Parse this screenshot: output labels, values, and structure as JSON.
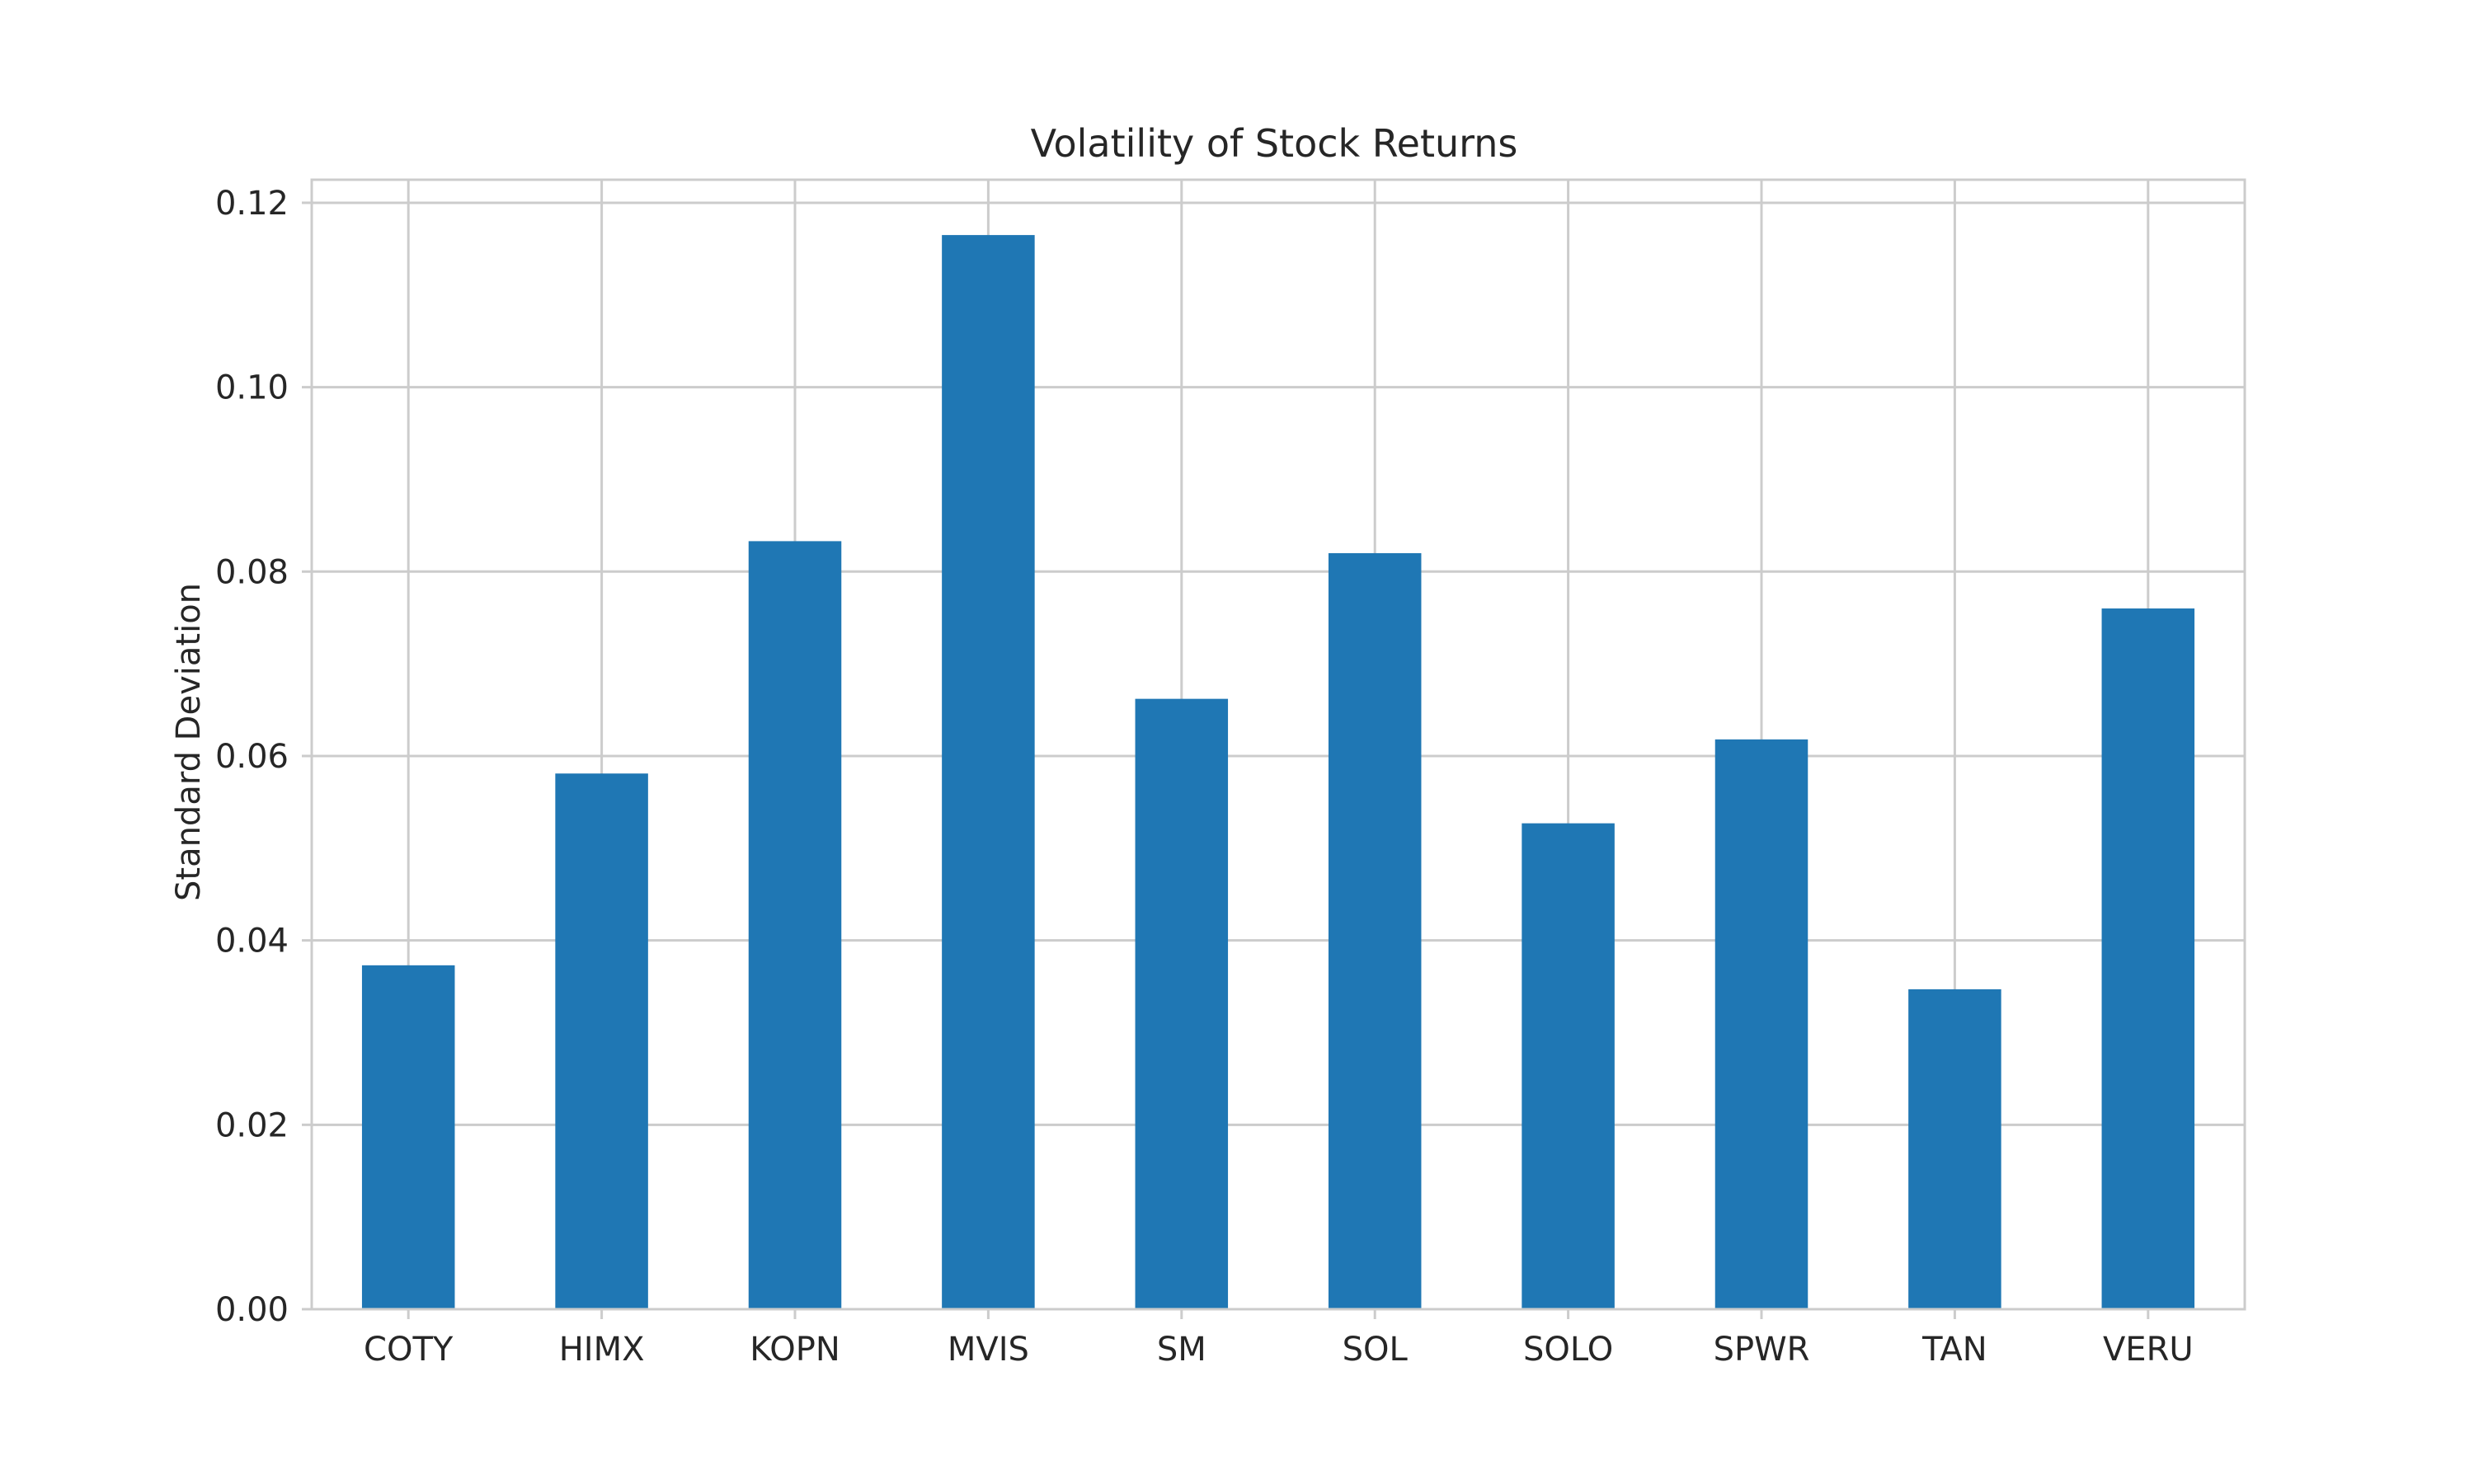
{
  "chart_data": {
    "type": "bar",
    "title": "Volatility of Stock Returns",
    "xlabel": "",
    "ylabel": "Standard Deviation",
    "categories": [
      "COTY",
      "HIMX",
      "KOPN",
      "MVIS",
      "SM",
      "SOL",
      "SOLO",
      "SPWR",
      "TAN",
      "VERU"
    ],
    "values": [
      0.0373,
      0.0581,
      0.0833,
      0.1165,
      0.0662,
      0.082,
      0.0527,
      0.0618,
      0.0347,
      0.076
    ],
    "ylim": [
      0,
      0.1225
    ],
    "yticks": [
      0.0,
      0.02,
      0.04,
      0.06,
      0.08,
      0.1,
      0.12
    ],
    "ytick_labels": [
      "0.00",
      "0.02",
      "0.04",
      "0.06",
      "0.08",
      "0.10",
      "0.12"
    ],
    "grid": true,
    "bar_color": "#1f77b4",
    "grid_color": "#cccccc",
    "spine_color": "#cccccc"
  }
}
